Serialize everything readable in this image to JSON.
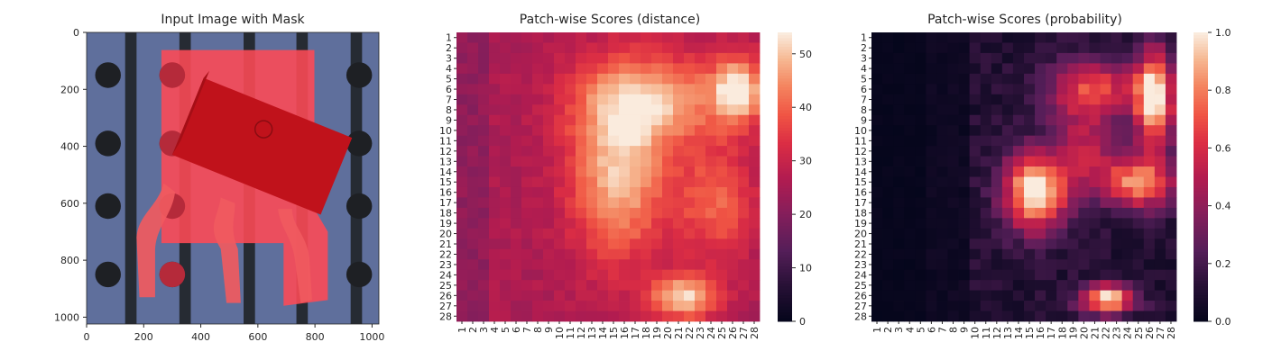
{
  "chart_data": [
    {
      "type": "image",
      "title": "Input Image with Mask",
      "xlim": [
        0,
        1024
      ],
      "ylim": [
        1024,
        0
      ],
      "x_ticks": [
        0,
        200,
        400,
        600,
        800,
        1000
      ],
      "y_ticks": [
        0,
        200,
        400,
        600,
        800,
        1000
      ],
      "colors": {
        "background": "#5f6f9c",
        "stripe": "#262b33",
        "hole": "#1e2024",
        "mask": "#ff4a55",
        "part": "#c0121b",
        "lead": "#f05a5f"
      }
    },
    {
      "type": "heatmap",
      "title": "Patch-wise Scores (distance)",
      "rows": 28,
      "cols": 28,
      "row_labels": [
        "1",
        "2",
        "3",
        "4",
        "5",
        "6",
        "7",
        "8",
        "9",
        "10",
        "11",
        "12",
        "13",
        "14",
        "15",
        "16",
        "17",
        "18",
        "19",
        "20",
        "21",
        "22",
        "23",
        "24",
        "25",
        "26",
        "27",
        "28"
      ],
      "col_labels": [
        "1",
        "2",
        "3",
        "4",
        "5",
        "6",
        "7",
        "8",
        "9",
        "10",
        "11",
        "12",
        "13",
        "14",
        "15",
        "16",
        "17",
        "18",
        "19",
        "20",
        "21",
        "22",
        "23",
        "24",
        "25",
        "26",
        "27",
        "28"
      ],
      "vmin": 0,
      "vmax": 54,
      "colorbar_ticks": [
        "0",
        "10",
        "20",
        "30",
        "40",
        "50"
      ],
      "colorbar_values": [
        0,
        10,
        20,
        30,
        40,
        50
      ],
      "colormap": "rocket"
    },
    {
      "type": "heatmap",
      "title": "Patch-wise Scores (probability)",
      "rows": 28,
      "cols": 28,
      "row_labels": [
        "1",
        "2",
        "3",
        "4",
        "5",
        "6",
        "7",
        "8",
        "9",
        "10",
        "11",
        "12",
        "13",
        "14",
        "15",
        "16",
        "17",
        "18",
        "19",
        "20",
        "21",
        "22",
        "23",
        "24",
        "25",
        "26",
        "27",
        "28"
      ],
      "col_labels": [
        "1",
        "2",
        "3",
        "4",
        "5",
        "6",
        "7",
        "8",
        "9",
        "10",
        "11",
        "12",
        "13",
        "14",
        "15",
        "16",
        "17",
        "18",
        "19",
        "20",
        "21",
        "22",
        "23",
        "24",
        "25",
        "26",
        "27",
        "28"
      ],
      "vmin": 0,
      "vmax": 1,
      "colorbar_ticks": [
        "0.0",
        "0.2",
        "0.4",
        "0.6",
        "0.8",
        "1.0"
      ],
      "colorbar_values": [
        0,
        0.2,
        0.4,
        0.6,
        0.8,
        1.0
      ],
      "colormap": "rocket"
    }
  ]
}
